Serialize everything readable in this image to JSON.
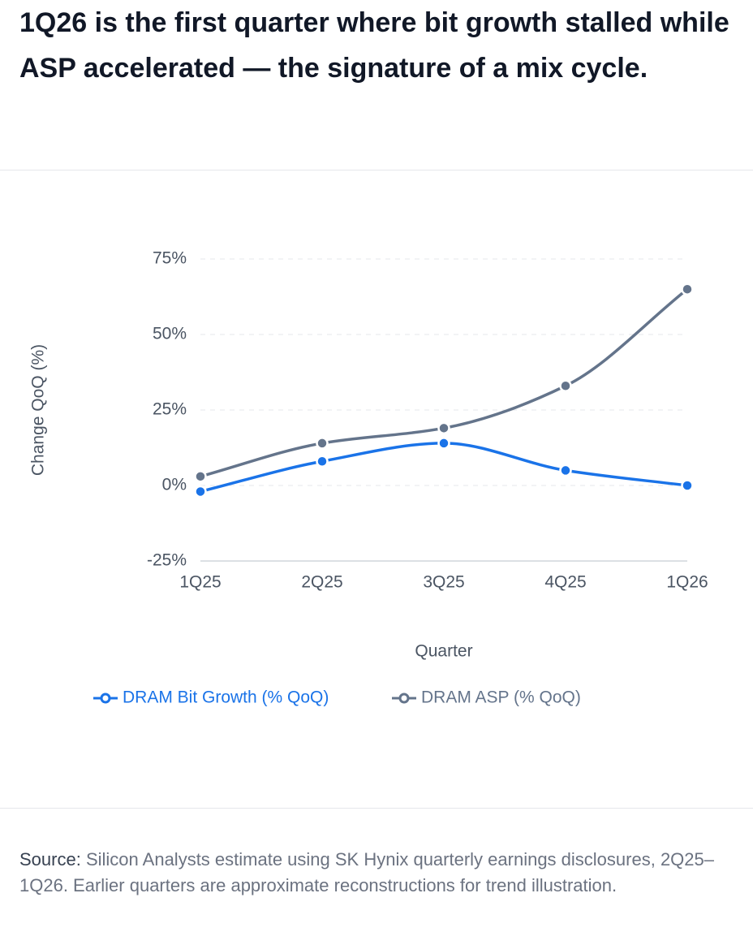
{
  "title": "1Q26 is the first quarter where bit growth stalled while ASP accelerated — the signature of a mix cycle.",
  "chart_data": {
    "type": "line",
    "x_label": "Quarter",
    "y_label": "Change QoQ (%)",
    "categories": [
      "1Q25",
      "2Q25",
      "3Q25",
      "4Q25",
      "1Q26"
    ],
    "series": [
      {
        "name": "DRAM Bit Growth (% QoQ)",
        "color": "#1a73e8",
        "values": [
          -2,
          8,
          14,
          5,
          0
        ]
      },
      {
        "name": "DRAM ASP (% QoQ)",
        "color": "#64748b",
        "values": [
          3,
          14,
          19,
          33,
          65
        ]
      }
    ],
    "ylim": [
      -25,
      75
    ],
    "yticks": [
      {
        "value": -25,
        "label": "-25%"
      },
      {
        "value": 0,
        "label": "0%"
      },
      {
        "value": 25,
        "label": "25%"
      },
      {
        "value": 50,
        "label": "50%"
      },
      {
        "value": 75,
        "label": "75%"
      }
    ],
    "grid": true
  },
  "source": {
    "label": "Source:",
    "text": "Silicon Analysts estimate using SK Hynix quarterly earnings disclosures, 2Q25–1Q26. Earlier quarters are approximate reconstructions for trend illustration."
  }
}
